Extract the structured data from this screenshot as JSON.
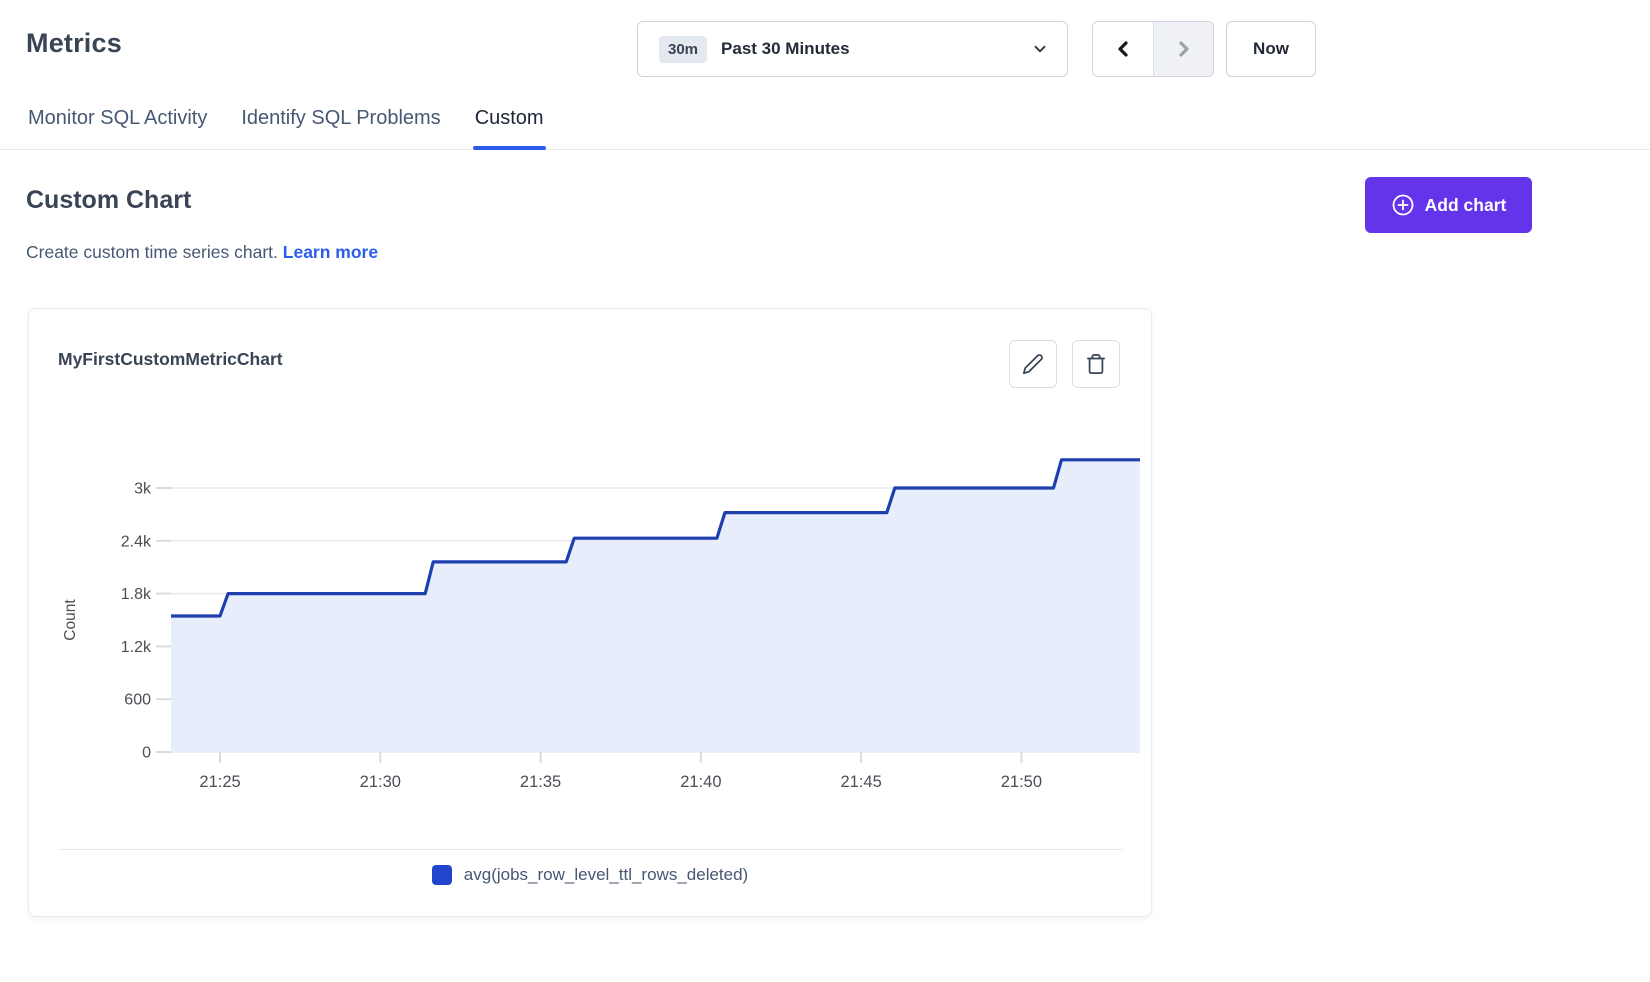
{
  "page": {
    "title": "Metrics"
  },
  "time_controls": {
    "range_badge": "30m",
    "range_label": "Past 30 Minutes",
    "now_label": "Now"
  },
  "tabs": [
    {
      "label": "Monitor SQL Activity",
      "active": false
    },
    {
      "label": "Identify SQL Problems",
      "active": false
    },
    {
      "label": "Custom",
      "active": true
    }
  ],
  "section": {
    "heading": "Custom Chart",
    "description": "Create custom time series chart.",
    "learn_more_label": "Learn more",
    "add_chart_label": "Add chart"
  },
  "chart_card": {
    "title": "MyFirstCustomMetricChart",
    "legend": [
      {
        "label": "avg(jobs_row_level_ttl_rows_deleted)",
        "color": "#2145cd"
      }
    ]
  },
  "colors": {
    "accent_purple": "#6434eb",
    "link_blue": "#2b5dea",
    "tab_underline": "#2b5deb",
    "line_blue": "#1e3fae",
    "area_fill": "#e8edfb",
    "legend_swatch": "#2145cd",
    "gridline": "#e7e9ed",
    "tick": "#d9dbdf",
    "axis_text": "#4b4e55"
  },
  "chart_data": {
    "type": "area",
    "title": "MyFirstCustomMetricChart",
    "ylabel": "Count",
    "xlabel": "",
    "grid": "horizontal",
    "legend_position": "bottom",
    "x_unit": "minutes_after_21:00",
    "x_axis": {
      "domain_minutes": [
        23.47,
        53.7
      ],
      "tick_minutes": [
        25,
        30,
        35,
        40,
        45,
        50
      ],
      "tick_labels": [
        "21:25",
        "21:30",
        "21:35",
        "21:40",
        "21:45",
        "21:50"
      ]
    },
    "y_axis": {
      "domain": [
        0,
        3530
      ],
      "ticks": [
        0,
        600,
        1200,
        1800,
        2400,
        3000
      ],
      "tick_labels": [
        "0",
        "600",
        "1.2k",
        "1.8k",
        "2.4k",
        "3k"
      ]
    },
    "series": [
      {
        "name": "avg(jobs_row_level_ttl_rows_deleted)",
        "color": "#1e3fae",
        "fill": "#e8edfb",
        "points": [
          [
            23.47,
            1545
          ],
          [
            25.0,
            1545
          ],
          [
            25.25,
            1800
          ],
          [
            31.4,
            1800
          ],
          [
            31.65,
            2160
          ],
          [
            35.8,
            2160
          ],
          [
            36.05,
            2430
          ],
          [
            40.5,
            2430
          ],
          [
            40.75,
            2720
          ],
          [
            45.8,
            2720
          ],
          [
            46.05,
            3000
          ],
          [
            51.0,
            3000
          ],
          [
            51.25,
            3320
          ],
          [
            53.7,
            3320
          ]
        ]
      }
    ]
  }
}
